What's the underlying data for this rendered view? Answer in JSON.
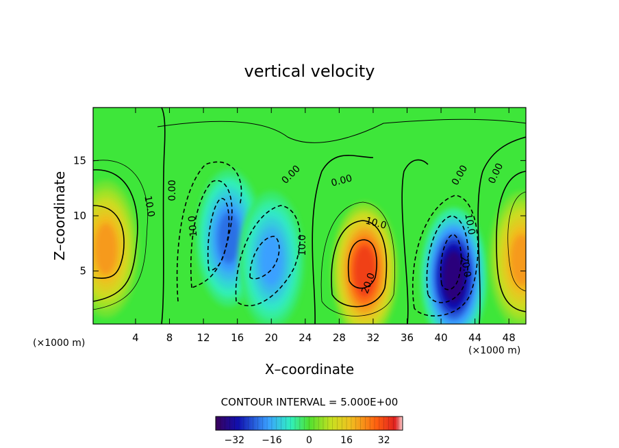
{
  "chart_data": {
    "type": "heatmap",
    "title": "vertical velocity",
    "xlabel": "X–coordinate",
    "ylabel": "Z–coordinate",
    "x_unit_left": "(×1000 m)",
    "x_unit_right": "(×1000 m)",
    "xlim": [
      -1,
      50
    ],
    "ylim": [
      0.2,
      19.8
    ],
    "x_ticks": [
      4,
      8,
      12,
      16,
      20,
      24,
      28,
      32,
      36,
      40,
      44,
      48
    ],
    "y_ticks": [
      5,
      10,
      15
    ],
    "contour_interval_text": "CONTOUR INTERVAL = 5.000E+00",
    "contour_labels": [
      "0.00",
      "0.00",
      "0.00",
      "0.00",
      "0.00",
      "10.0",
      "10.0",
      "10.0",
      "10.0",
      "10.0",
      "20.0",
      "20.0"
    ],
    "colorbar": {
      "range": [
        -40,
        40
      ],
      "ticks": [
        -32,
        -16,
        0,
        16,
        32
      ],
      "tick_labels": [
        "−32",
        "−16",
        "0",
        "16",
        "32"
      ]
    },
    "cells": [
      {
        "x": 0.5,
        "z": 7,
        "value": 22
      },
      {
        "x": 15,
        "z": 8,
        "value": -22
      },
      {
        "x": 20,
        "z": 6,
        "value": -18
      },
      {
        "x": 31,
        "z": 5,
        "value": 32
      },
      {
        "x": 41.5,
        "z": 4.5,
        "value": -36
      },
      {
        "x": 49.5,
        "z": 6,
        "value": 22
      }
    ]
  }
}
